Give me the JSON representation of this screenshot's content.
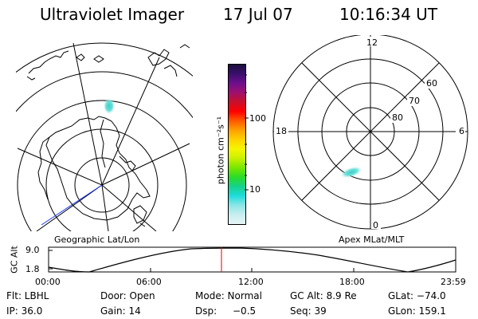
{
  "header": {
    "instrument": "Ultraviolet Imager",
    "date": "17 Jul 07",
    "time": "10:16:34 UT"
  },
  "geo_panel": {
    "caption": "Geographic Lat/Lon"
  },
  "colorbar": {
    "unit_label": "photon cm⁻²s⁻¹",
    "tick_labels": [
      "100",
      "10"
    ],
    "colors_top_to_bottom": [
      "#1a0f3c",
      "#3c0f6e",
      "#6e0f8c",
      "#a0106e",
      "#c8102a",
      "#ff0000",
      "#ff5a00",
      "#ffa000",
      "#ffd200",
      "#f5f500",
      "#c8f000",
      "#78e600",
      "#28dc28",
      "#14d28c",
      "#1edcdc",
      "#8ce6e6",
      "#c8eef0",
      "#e6f4f4"
    ]
  },
  "polar_panel": {
    "caption": "Apex MLat/MLT",
    "mlt_labels": {
      "top": "12",
      "left": "18",
      "right": "6",
      "bottom": "0"
    },
    "mlat_labels": [
      "60",
      "70",
      "80"
    ]
  },
  "altitude_plot": {
    "ylabel": "GC Alt",
    "y_ticks": [
      "9.0",
      "1.8"
    ],
    "x_ticks": [
      "00:00",
      "06:00",
      "12:00",
      "18:00",
      "23:59"
    ],
    "marker_time": "10:16:34"
  },
  "info": {
    "flt": "Flt: LBHL",
    "door": "Door: Open",
    "mode": "Mode: Normal",
    "gc_alt": "GC Alt: 8.9 Re",
    "glat": "GLat: −74.0",
    "ip": "IP: 36.0",
    "gain": "Gain: 14",
    "dsp_label": "Dsp:",
    "dsp_value": "−0.5",
    "seq": "Seq: 39",
    "glon": "GLon: 159.1"
  },
  "colors": {
    "coast": "#000000",
    "grid": "#000000",
    "aurora": "#4fd6cf",
    "terminator": "#1a3cff",
    "marker": "#e00000"
  }
}
